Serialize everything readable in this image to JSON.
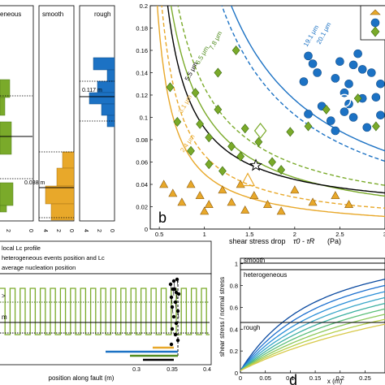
{
  "colors": {
    "green": "#7aaa2a",
    "green_dark": "#4f8a1c",
    "orange": "#e8a82a",
    "blue": "#1c72c4",
    "black": "#000000"
  },
  "panel_a": {
    "columns": [
      {
        "title": "eneous",
        "tick_labels": [
          "2",
          "0"
        ],
        "value_label": ""
      },
      {
        "title": "smooth",
        "tick_labels": [
          "4",
          "2",
          "0"
        ],
        "value_label": "0.038 m"
      },
      {
        "title": "rough",
        "tick_labels": [
          "4",
          "2",
          "0"
        ],
        "value_label": "0.117 m"
      }
    ]
  },
  "panel_b": {
    "label": "b",
    "xlabel": "shear stress drop",
    "xlabel_math": "τ0 - τR",
    "xlabel_unit": "(Pa)",
    "xlim": [
      0.4,
      3.0
    ],
    "ylim": [
      0.0,
      0.2
    ],
    "x_ticks": [
      "0.5",
      "1",
      "1.5",
      "2",
      "2.5",
      "3"
    ],
    "y_ticks": [
      "0",
      "0.02",
      "0.04",
      "0.06",
      "0.08",
      "0.1",
      "0.12",
      "0.14",
      "0.16",
      "0.18",
      "0.2"
    ],
    "curve_labels": [
      "20.1 μm",
      "19.1 μm",
      "7.8 μm",
      "6.5 μm",
      "5.5 μm",
      "3.1 μm",
      "2.4 μm"
    ],
    "star": {
      "x": 1.57,
      "y": 0.057
    },
    "blue_points": [
      [
        2.15,
        0.155
      ],
      [
        2.2,
        0.148
      ],
      [
        2.25,
        0.14
      ],
      [
        2.45,
        0.135
      ],
      [
        2.5,
        0.15
      ],
      [
        2.55,
        0.122
      ],
      [
        2.6,
        0.13
      ],
      [
        2.65,
        0.147
      ],
      [
        2.7,
        0.157
      ],
      [
        2.75,
        0.143
      ],
      [
        2.55,
        0.105
      ],
      [
        2.4,
        0.097
      ],
      [
        2.85,
        0.14
      ],
      [
        2.95,
        0.13
      ],
      [
        2.1,
        0.132
      ],
      [
        2.3,
        0.11
      ],
      [
        2.6,
        0.112
      ],
      [
        2.75,
        0.117
      ],
      [
        2.95,
        0.102
      ],
      [
        2.9,
        0.118
      ],
      [
        2.65,
        0.1
      ],
      [
        2.45,
        0.088
      ],
      [
        2.15,
        0.103
      ],
      [
        2.8,
        0.091
      ]
    ],
    "green_points": [
      [
        0.62,
        0.127
      ],
      [
        0.9,
        0.122
      ],
      [
        1.15,
        0.14
      ],
      [
        1.35,
        0.16
      ],
      [
        0.7,
        0.096
      ],
      [
        0.95,
        0.094
      ],
      [
        1.15,
        0.107
      ],
      [
        1.05,
        0.082
      ],
      [
        1.3,
        0.074
      ],
      [
        0.85,
        0.07
      ],
      [
        1.45,
        0.09
      ],
      [
        1.75,
        0.06
      ],
      [
        1.6,
        0.078
      ],
      [
        1.95,
        0.087
      ],
      [
        2.15,
        0.092
      ],
      [
        2.35,
        0.107
      ],
      [
        2.7,
        0.117
      ],
      [
        2.9,
        0.092
      ],
      [
        1.05,
        0.058
      ],
      [
        1.4,
        0.065
      ],
      [
        1.85,
        0.053
      ],
      [
        1.2,
        0.052
      ]
    ],
    "orange_points": [
      [
        0.55,
        0.04
      ],
      [
        0.65,
        0.032
      ],
      [
        0.75,
        0.024
      ],
      [
        0.85,
        0.04
      ],
      [
        0.95,
        0.03
      ],
      [
        1.05,
        0.022
      ],
      [
        1.2,
        0.035
      ],
      [
        1.3,
        0.024
      ],
      [
        1.4,
        0.04
      ],
      [
        1.55,
        0.03
      ],
      [
        1.7,
        0.022
      ],
      [
        1.85,
        0.016
      ],
      [
        2.0,
        0.035
      ],
      [
        2.2,
        0.024
      ],
      [
        2.45,
        0.03
      ],
      [
        2.6,
        0.022
      ],
      [
        1.0,
        0.016
      ],
      [
        1.45,
        0.017
      ]
    ],
    "open_diamond_green": {
      "x": 1.62,
      "y": 0.088
    },
    "open_triangle_orange": {
      "x": 1.48,
      "y": 0.044
    },
    "open_circle_blue": {
      "x": 2.55,
      "y": 0.115
    }
  },
  "panel_c": {
    "legend": [
      "local Lc profile",
      "heterogeneous events position and Lc",
      "average nucleation position"
    ],
    "xlabel": "position along fault (m)",
    "x_ticks": [
      "0.3",
      "0.35",
      "0.4"
    ],
    "left_marks": [
      ">",
      "m"
    ]
  },
  "panel_d": {
    "label": "d",
    "xlabel": "x (m)",
    "ylabel": "shear stress / normal stress",
    "x_ticks": [
      "0",
      "0.05",
      "0.1",
      "0.15",
      "0.2",
      "0.25"
    ],
    "y_ticks": [
      "0",
      "0.2",
      "0.4",
      "0.6",
      "0.8",
      "1"
    ],
    "annotations": [
      "smooth",
      "heterogeneous",
      "rough"
    ]
  }
}
